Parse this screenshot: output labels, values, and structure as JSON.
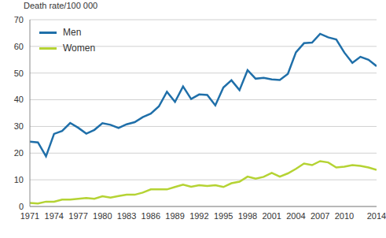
{
  "chart_data": {
    "type": "line",
    "y_label": "Death rate/100 000",
    "x": [
      1971,
      1972,
      1973,
      1974,
      1975,
      1976,
      1977,
      1978,
      1979,
      1980,
      1981,
      1982,
      1983,
      1984,
      1985,
      1986,
      1987,
      1988,
      1989,
      1990,
      1991,
      1992,
      1993,
      1994,
      1995,
      1996,
      1997,
      1998,
      1999,
      2000,
      2001,
      2002,
      2003,
      2004,
      2005,
      2006,
      2007,
      2008,
      2009,
      2010,
      2011,
      2012,
      2013,
      2014
    ],
    "series": [
      {
        "name": "Men",
        "color": "#1f6fa9",
        "values": [
          24.3,
          24,
          18.8,
          27.2,
          28.3,
          31.3,
          29.5,
          27.3,
          28.7,
          31.2,
          30.6,
          29.4,
          30.8,
          31.6,
          33.5,
          34.8,
          37.5,
          43,
          39.2,
          45,
          40.3,
          42,
          41.8,
          37.9,
          44.6,
          47.3,
          43.6,
          51.1,
          47.9,
          48.2,
          47.6,
          47.4,
          49.7,
          57.8,
          61.2,
          61.4,
          64.7,
          63.4,
          62.6,
          57.7,
          53.8,
          56.1,
          55,
          52.6
        ]
      },
      {
        "name": "Women",
        "color": "#b5d334",
        "values": [
          1.3,
          1.1,
          1.8,
          1.8,
          2.6,
          2.6,
          2.9,
          3.2,
          2.9,
          3.8,
          3.3,
          3.9,
          4.4,
          4.4,
          5.2,
          6.4,
          6.4,
          6.4,
          7.3,
          8.2,
          7.4,
          8,
          7.7,
          8,
          7.3,
          8.7,
          9.3,
          11.2,
          10.4,
          11.1,
          12.6,
          11.2,
          12.4,
          14.1,
          16.1,
          15.5,
          17,
          16.5,
          14.6,
          14.9,
          15.5,
          15.2,
          14.6,
          13.7
        ]
      }
    ],
    "xlim": [
      1971,
      2014
    ],
    "xticks": [
      1971,
      1974,
      1977,
      1980,
      1983,
      1986,
      1989,
      1992,
      1995,
      1998,
      2001,
      2004,
      2007,
      2010,
      2014
    ],
    "ylim": [
      0,
      70
    ],
    "yticks": [
      0,
      10,
      20,
      30,
      40,
      50,
      60,
      70
    ],
    "grid": true,
    "legend": "top-left"
  }
}
